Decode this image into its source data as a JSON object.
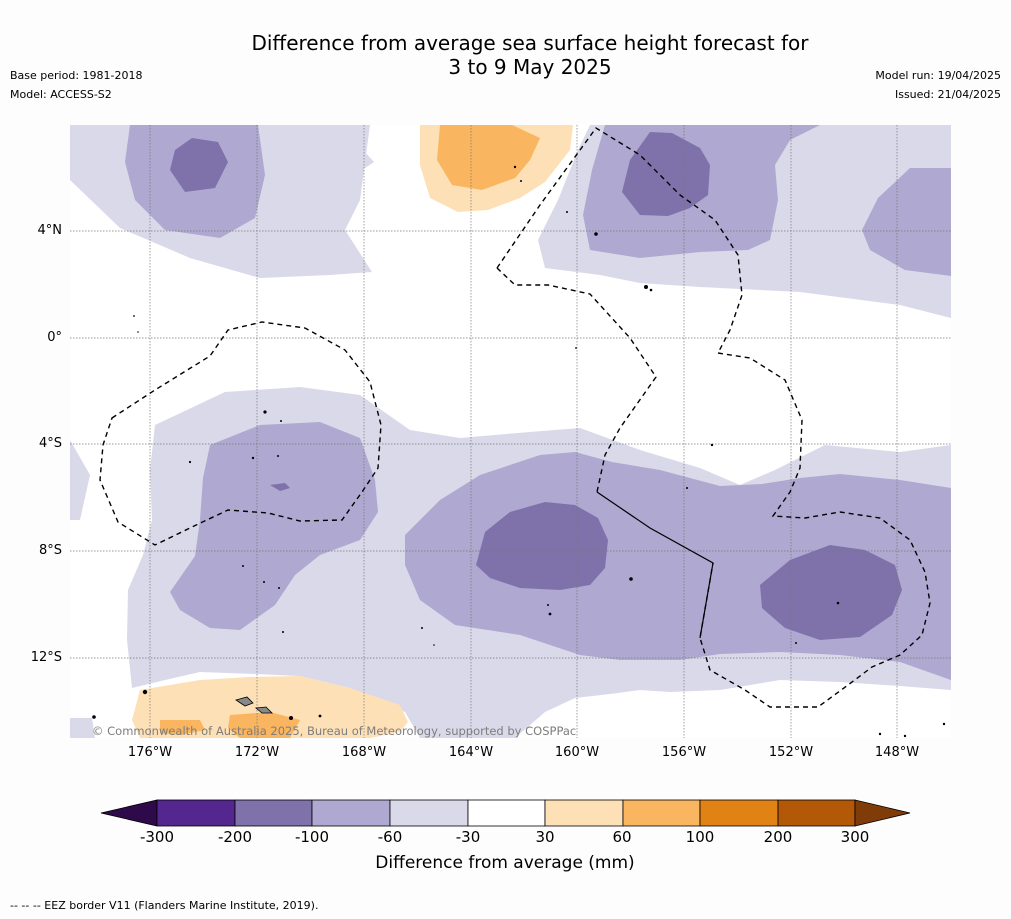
{
  "title": {
    "line1": "Difference from average sea surface height forecast for",
    "line2": "3 to 9 May 2025"
  },
  "meta": {
    "base_period": "Base period: 1981-2018",
    "model": "Model: ACCESS-S2",
    "model_run": "Model run: 19/04/2025",
    "issued": "Issued: 21/04/2025"
  },
  "map": {
    "lat_labels": [
      "4°N",
      "0°",
      "4°S",
      "8°S",
      "12°S"
    ],
    "lon_labels": [
      "176°W",
      "172°W",
      "168°W",
      "164°W",
      "160°W",
      "156°W",
      "152°W",
      "148°W"
    ],
    "copyright": "© Commonwealth of Australia 2025, Bureau of Meteorology, supported by COSPPac"
  },
  "colorbar": {
    "ticks": [
      "-300",
      "-200",
      "-100",
      "-60",
      "-30",
      "30",
      "60",
      "100",
      "200",
      "300"
    ],
    "label": "Difference from average (mm)",
    "colors": [
      "#2e0a4a",
      "#54278f",
      "#7f72ab",
      "#afa8d0",
      "#d9d9ea",
      "#ffffff",
      "#fde0b6",
      "#f9b55f",
      "#e08214",
      "#b35806",
      "#7f3b08"
    ]
  },
  "footnote": "--  --  -- EEZ border V11 (Flanders Marine Institute, 2019)."
}
